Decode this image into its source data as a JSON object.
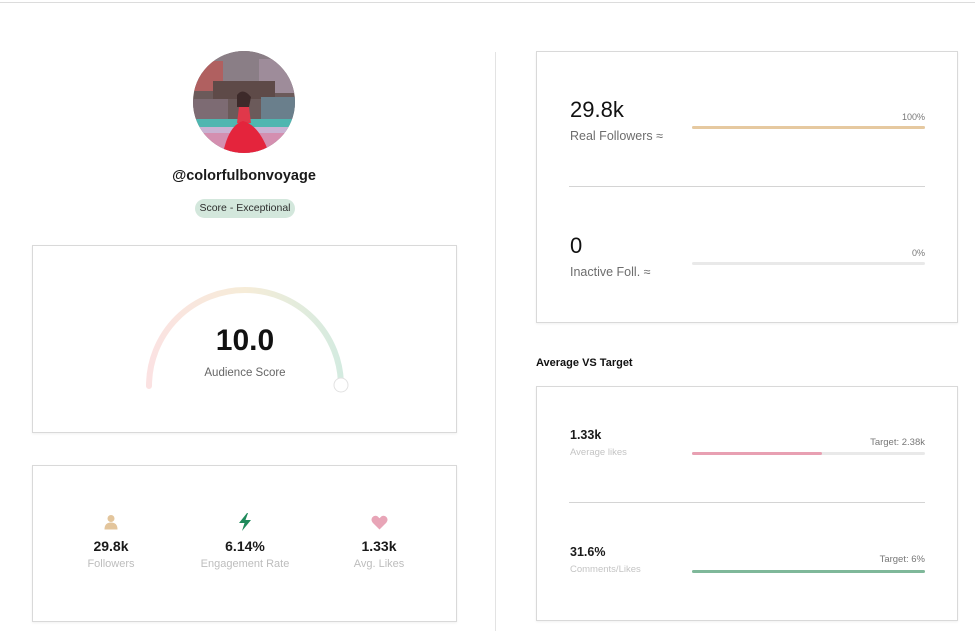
{
  "profile": {
    "handle": "@colorfulbonvoyage",
    "score_badge": "Score - Exceptional"
  },
  "audience_score": {
    "value": "10.0",
    "label": "Audience Score",
    "fraction": 1.0
  },
  "stats": [
    {
      "icon": "person-icon",
      "value": "29.8k",
      "label": "Followers",
      "color": "#e3c59c"
    },
    {
      "icon": "lightning-icon",
      "value": "6.14%",
      "label": "Engagement Rate",
      "color": "#1f8a5b"
    },
    {
      "icon": "heart-icon",
      "value": "1.33k",
      "label": "Avg. Likes",
      "color": "#e8a5b7"
    }
  ],
  "followers": {
    "real": {
      "value": "29.8k",
      "label": "Real Followers ≈",
      "percent_label": "100%",
      "fraction": 1.0,
      "color": "#e6c9a0"
    },
    "inactive": {
      "value": "0",
      "label": "Inactive Foll. ≈",
      "percent_label": "0%",
      "fraction": 0.0,
      "color": "#e6c9a0"
    }
  },
  "avg_vs_target": {
    "title": "Average VS Target",
    "likes": {
      "value": "1.33k",
      "label": "Average likes",
      "target": "Target: 2.38k",
      "fraction": 0.56,
      "color": "#e8a0b2"
    },
    "comments": {
      "value": "31.6%",
      "label": "Comments/Likes",
      "target": "Target: 6%",
      "fraction": 1.0,
      "color": "#7fb89a"
    }
  }
}
